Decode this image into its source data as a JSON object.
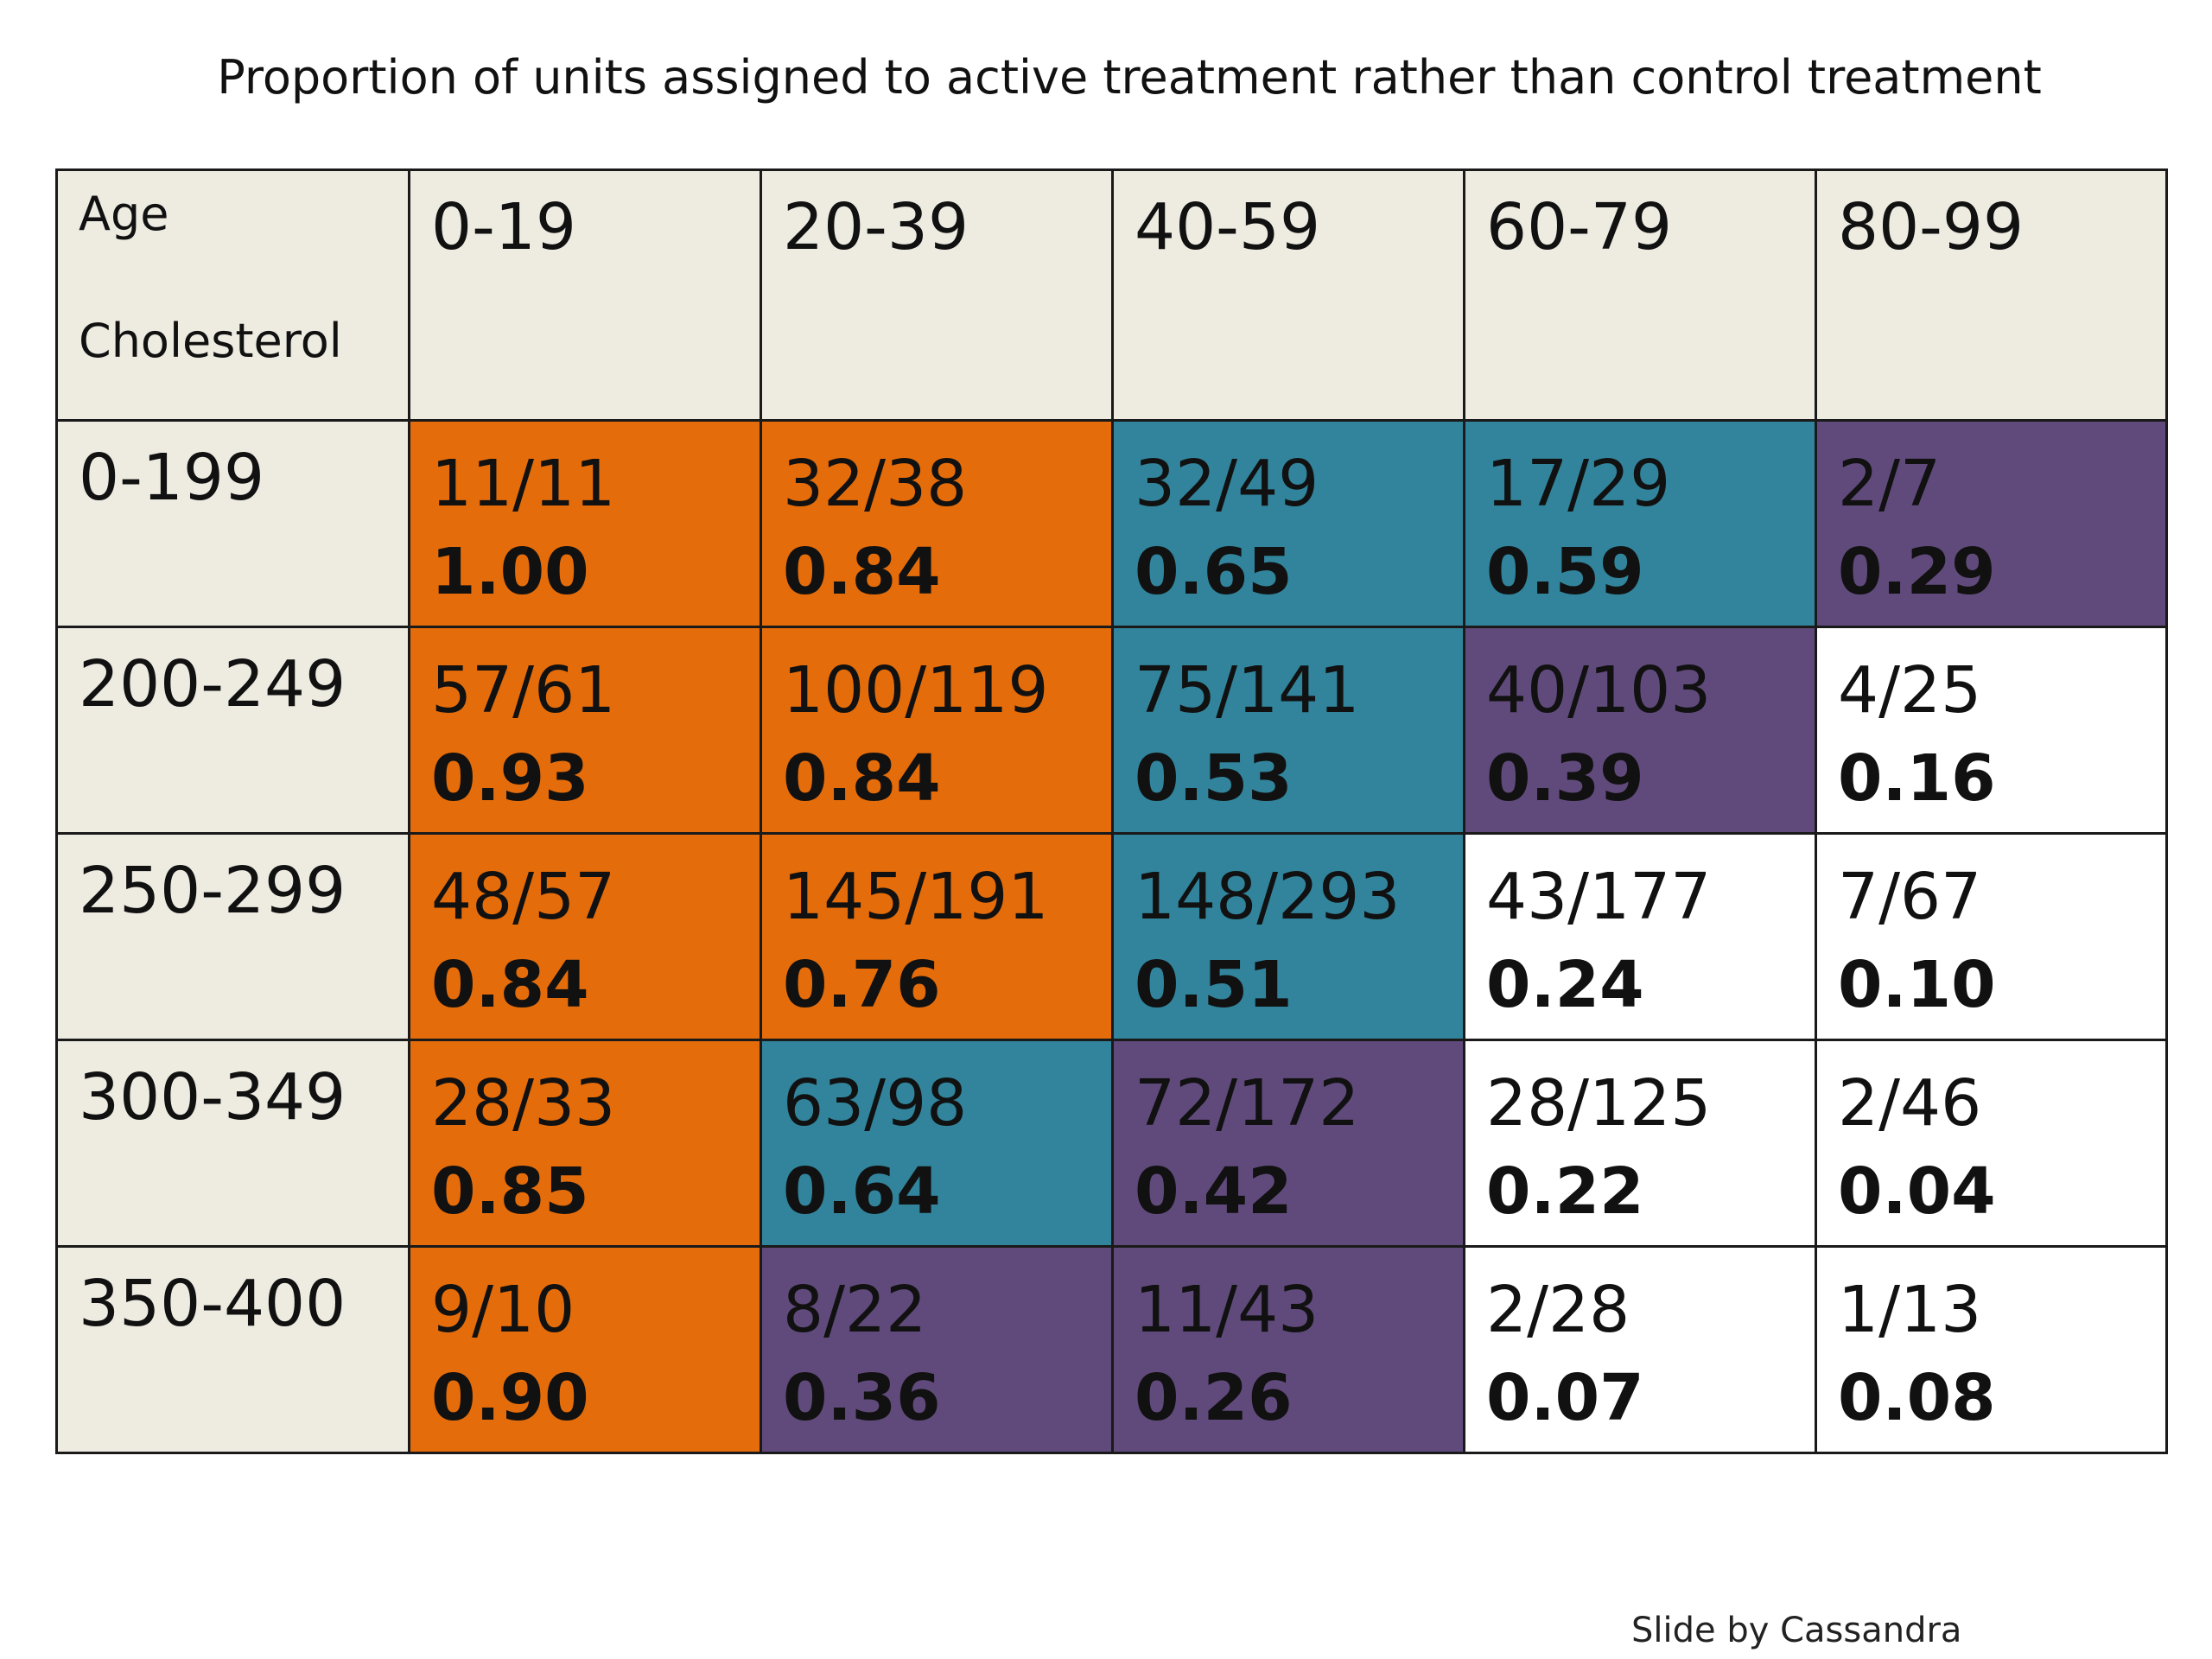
{
  "title": "Proportion of units assigned to active treatment rather than control treatment",
  "credit": "Slide by Cassandra",
  "colors": {
    "header_bg": "#eeebe1",
    "orange": "#e46c0a",
    "teal": "#31849b",
    "purple": "#604a7b",
    "white": "#ffffff"
  },
  "chart_data": {
    "type": "table",
    "row_header_label": "Cholesterol",
    "column_header_label": "Age",
    "columns": [
      "0-19",
      "20-39",
      "40-59",
      "60-79",
      "80-99"
    ],
    "rows": [
      {
        "label": "0-199",
        "cells": [
          {
            "fraction": "11/11",
            "proportion": "1.00",
            "color": "orange"
          },
          {
            "fraction": "32/38",
            "proportion": "0.84",
            "color": "orange"
          },
          {
            "fraction": "32/49",
            "proportion": "0.65",
            "color": "teal"
          },
          {
            "fraction": "17/29",
            "proportion": "0.59",
            "color": "teal"
          },
          {
            "fraction": "2/7",
            "proportion": "0.29",
            "color": "purple"
          }
        ]
      },
      {
        "label": "200-249",
        "cells": [
          {
            "fraction": "57/61",
            "proportion": "0.93",
            "color": "orange"
          },
          {
            "fraction": "100/119",
            "proportion": "0.84",
            "color": "orange"
          },
          {
            "fraction": "75/141",
            "proportion": "0.53",
            "color": "teal"
          },
          {
            "fraction": "40/103",
            "proportion": "0.39",
            "color": "purple"
          },
          {
            "fraction": "4/25",
            "proportion": "0.16",
            "color": "white"
          }
        ]
      },
      {
        "label": "250-299",
        "cells": [
          {
            "fraction": "48/57",
            "proportion": "0.84",
            "color": "orange"
          },
          {
            "fraction": "145/191",
            "proportion": "0.76",
            "color": "orange"
          },
          {
            "fraction": "148/293",
            "proportion": "0.51",
            "color": "teal"
          },
          {
            "fraction": "43/177",
            "proportion": "0.24",
            "color": "white"
          },
          {
            "fraction": "7/67",
            "proportion": "0.10",
            "color": "white"
          }
        ]
      },
      {
        "label": "300-349",
        "cells": [
          {
            "fraction": "28/33",
            "proportion": "0.85",
            "color": "orange"
          },
          {
            "fraction": "63/98",
            "proportion": "0.64",
            "color": "teal"
          },
          {
            "fraction": "72/172",
            "proportion": "0.42",
            "color": "purple"
          },
          {
            "fraction": "28/125",
            "proportion": "0.22",
            "color": "white"
          },
          {
            "fraction": "2/46",
            "proportion": "0.04",
            "color": "white"
          }
        ]
      },
      {
        "label": "350-400",
        "cells": [
          {
            "fraction": "9/10",
            "proportion": "0.90",
            "color": "orange"
          },
          {
            "fraction": "8/22",
            "proportion": "0.36",
            "color": "purple"
          },
          {
            "fraction": "11/43",
            "proportion": "0.26",
            "color": "purple"
          },
          {
            "fraction": "2/28",
            "proportion": "0.07",
            "color": "white"
          },
          {
            "fraction": "1/13",
            "proportion": "0.08",
            "color": "white"
          }
        ]
      }
    ]
  }
}
